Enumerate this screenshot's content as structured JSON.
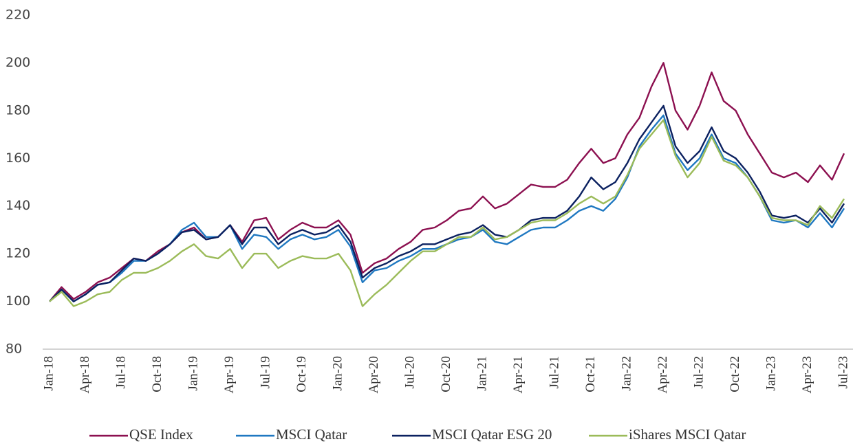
{
  "chart_data": {
    "type": "line",
    "categories": [
      "Jan-18",
      null,
      null,
      "Apr-18",
      null,
      null,
      "Jul-18",
      null,
      null,
      "Oct-18",
      null,
      null,
      "Jan-19",
      null,
      null,
      "Apr-19",
      null,
      null,
      "Jul-19",
      null,
      null,
      "Oct-19",
      null,
      null,
      "Jan-20",
      null,
      null,
      "Apr-20",
      null,
      null,
      "Jul-20",
      null,
      null,
      "Oct-20",
      null,
      null,
      "Jan-21",
      null,
      null,
      "Apr-21",
      null,
      null,
      "Jul-21",
      null,
      null,
      "Oct-21",
      null,
      null,
      "Jan-22",
      null,
      null,
      "Apr-22",
      null,
      null,
      "Jul-22",
      null,
      null,
      "Oct-22",
      null,
      null,
      "Jan-23",
      null,
      null,
      "Apr-23",
      null,
      null,
      "Jul-23"
    ],
    "series": [
      {
        "name": "QSE Index",
        "color": "#8c1050",
        "values": [
          100,
          106,
          101,
          104,
          108,
          110,
          114,
          118,
          117,
          121,
          124,
          129,
          131,
          126,
          127,
          132,
          125,
          134,
          135,
          126,
          130,
          133,
          131,
          131,
          134,
          128,
          112,
          116,
          118,
          122,
          125,
          130,
          131,
          134,
          138,
          139,
          144,
          139,
          141,
          145,
          149,
          148,
          148,
          151,
          158,
          164,
          158,
          160,
          170,
          177,
          190,
          200,
          180,
          172,
          182,
          196,
          184,
          180,
          170,
          162,
          154,
          152,
          154,
          150,
          157,
          151,
          162
        ]
      },
      {
        "name": "MSCI Qatar",
        "color": "#1f78c1",
        "values": [
          100,
          105,
          100,
          103,
          107,
          108,
          112,
          117,
          117,
          120,
          124,
          130,
          133,
          127,
          127,
          132,
          122,
          128,
          127,
          122,
          126,
          128,
          126,
          127,
          130,
          123,
          108,
          113,
          114,
          117,
          119,
          122,
          122,
          124,
          126,
          127,
          130,
          125,
          124,
          127,
          130,
          131,
          131,
          134,
          138,
          140,
          138,
          143,
          152,
          165,
          172,
          178,
          162,
          155,
          160,
          170,
          160,
          158,
          152,
          144,
          134,
          133,
          134,
          131,
          137,
          131,
          139
        ]
      },
      {
        "name": "MSCI Qatar ESG 20",
        "color": "#0b2160",
        "values": [
          100,
          105,
          100,
          103,
          107,
          108,
          113,
          118,
          117,
          120,
          124,
          129,
          130,
          126,
          127,
          132,
          124,
          131,
          131,
          124,
          128,
          130,
          128,
          129,
          132,
          125,
          110,
          114,
          116,
          119,
          121,
          124,
          124,
          126,
          128,
          129,
          132,
          128,
          127,
          130,
          134,
          135,
          135,
          138,
          144,
          152,
          147,
          150,
          158,
          168,
          175,
          182,
          165,
          158,
          163,
          173,
          163,
          160,
          154,
          146,
          136,
          135,
          136,
          133,
          139,
          133,
          141
        ]
      },
      {
        "name": "iShares MSCI Qatar",
        "color": "#9bbb59",
        "values": [
          100,
          104,
          98,
          100,
          103,
          104,
          109,
          112,
          112,
          114,
          117,
          121,
          124,
          119,
          118,
          122,
          114,
          120,
          120,
          114,
          117,
          119,
          118,
          118,
          120,
          113,
          98,
          103,
          107,
          112,
          117,
          121,
          121,
          124,
          127,
          127,
          131,
          126,
          127,
          130,
          133,
          134,
          134,
          137,
          141,
          144,
          141,
          144,
          153,
          164,
          170,
          176,
          161,
          152,
          158,
          169,
          159,
          157,
          152,
          144,
          135,
          134,
          134,
          132,
          140,
          135,
          143
        ]
      }
    ],
    "ylim": [
      80,
      220
    ],
    "yticks": [
      80,
      100,
      120,
      140,
      160,
      180,
      200,
      220
    ],
    "grid": false
  }
}
